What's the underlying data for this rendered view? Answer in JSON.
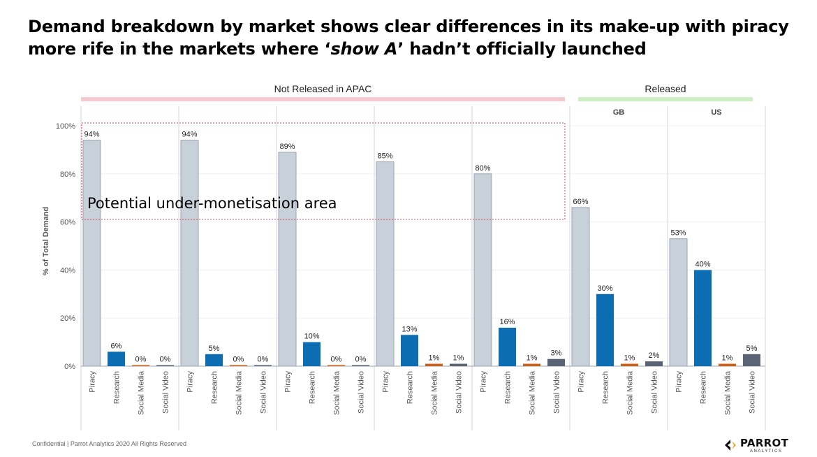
{
  "slide": {
    "title_part1": "Demand breakdown by market shows clear differences in its make-up with piracy more rife in the markets where ‘",
    "title_em": "show A",
    "title_part2": "’  hadn’t officially launched",
    "footer": "Confidential | Parrot Analytics 2020 All Rights Reserved",
    "logo": {
      "brand": "PARROT",
      "sub": "ANALYTICS"
    },
    "groups": [
      {
        "label": "Not Released in APAC",
        "color": "#f6c9d0"
      },
      {
        "label": "Released",
        "color": "#cdeec0"
      }
    ],
    "annotation": "Potential under-monetisation area"
  },
  "chart_data": {
    "type": "bar",
    "ylabel": "% of Total Demand",
    "ylim": [
      0,
      100
    ],
    "yticks": [
      "0%",
      "20%",
      "40%",
      "60%",
      "80%",
      "100%"
    ],
    "categories": [
      "Piracy",
      "Research",
      "Social Media",
      "Social Video"
    ],
    "category_colors": [
      "#c8d0da",
      "#0d6db3",
      "#c9601b",
      "#5a6475"
    ],
    "panels": [
      {
        "name": "",
        "values": [
          94,
          6,
          0,
          0
        ],
        "labels": [
          "94%",
          "6%",
          "0%",
          "0%"
        ]
      },
      {
        "name": "",
        "values": [
          94,
          5,
          0,
          0
        ],
        "labels": [
          "94%",
          "5%",
          "0%",
          "0%"
        ]
      },
      {
        "name": "",
        "values": [
          89,
          10,
          0,
          0
        ],
        "labels": [
          "89%",
          "10%",
          "0%",
          "0%"
        ]
      },
      {
        "name": "",
        "values": [
          85,
          13,
          1,
          1
        ],
        "labels": [
          "85%",
          "13%",
          "1%",
          "1%"
        ]
      },
      {
        "name": "",
        "values": [
          80,
          16,
          1,
          3
        ],
        "labels": [
          "80%",
          "16%",
          "1%",
          "3%"
        ]
      },
      {
        "name": "GB",
        "values": [
          66,
          30,
          1,
          2
        ],
        "labels": [
          "66%",
          "30%",
          "1%",
          "2%"
        ]
      },
      {
        "name": "US",
        "values": [
          53,
          40,
          1,
          5
        ],
        "labels": [
          "53%",
          "40%",
          "1%",
          "5%"
        ]
      }
    ]
  }
}
